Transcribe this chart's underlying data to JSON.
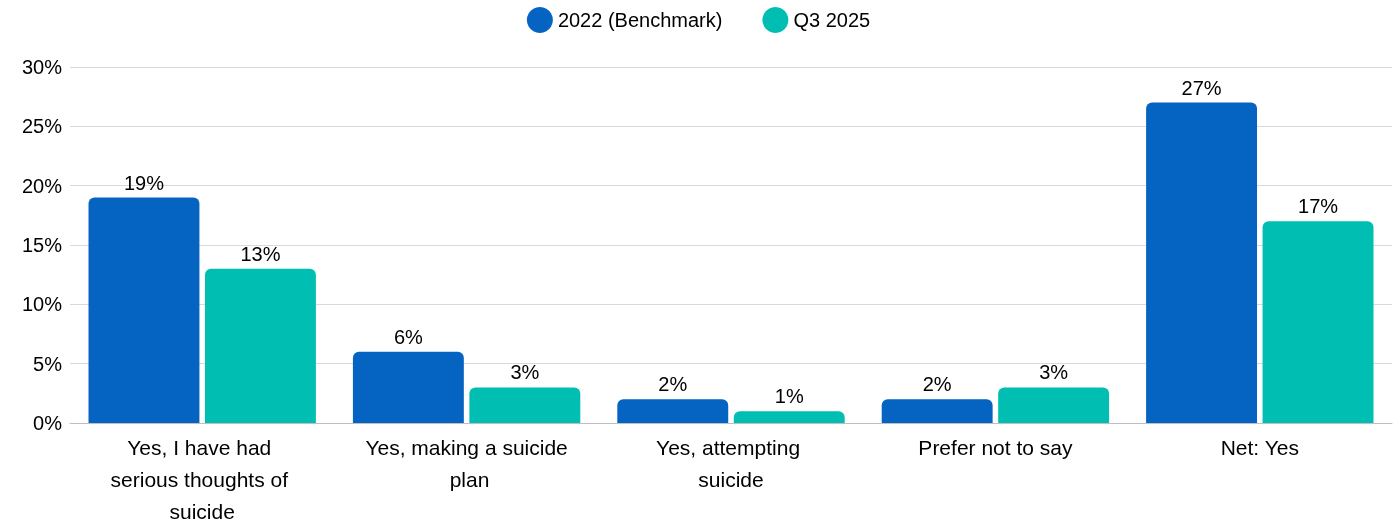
{
  "chart_data": {
    "type": "bar",
    "categories": [
      "Yes, I have had serious thoughts of suicide",
      "Yes, making a suicide plan",
      "Yes, attempting suicide",
      "Prefer not to say",
      "Net: Yes"
    ],
    "series": [
      {
        "name": "2022 (Benchmark)",
        "color": "#0563c1",
        "values": [
          19,
          6,
          2,
          2,
          27
        ],
        "value_labels": [
          "19%",
          "6%",
          "2%",
          "2%",
          "27%"
        ]
      },
      {
        "name": "Q3 2025",
        "color": "#00bfb2",
        "values": [
          13,
          3,
          1,
          3,
          17
        ],
        "value_labels": [
          "13%",
          "3%",
          "1%",
          "3%",
          "17%"
        ]
      }
    ],
    "ylim": [
      0,
      30
    ],
    "yticks": [
      {
        "value": 0,
        "label": "0%"
      },
      {
        "value": 5,
        "label": "5%"
      },
      {
        "value": 10,
        "label": "10%"
      },
      {
        "value": 15,
        "label": "15%"
      },
      {
        "value": 20,
        "label": "20%"
      },
      {
        "value": 25,
        "label": "25%"
      },
      {
        "value": 30,
        "label": "30%"
      }
    ],
    "grid": "y",
    "legend": "top"
  }
}
